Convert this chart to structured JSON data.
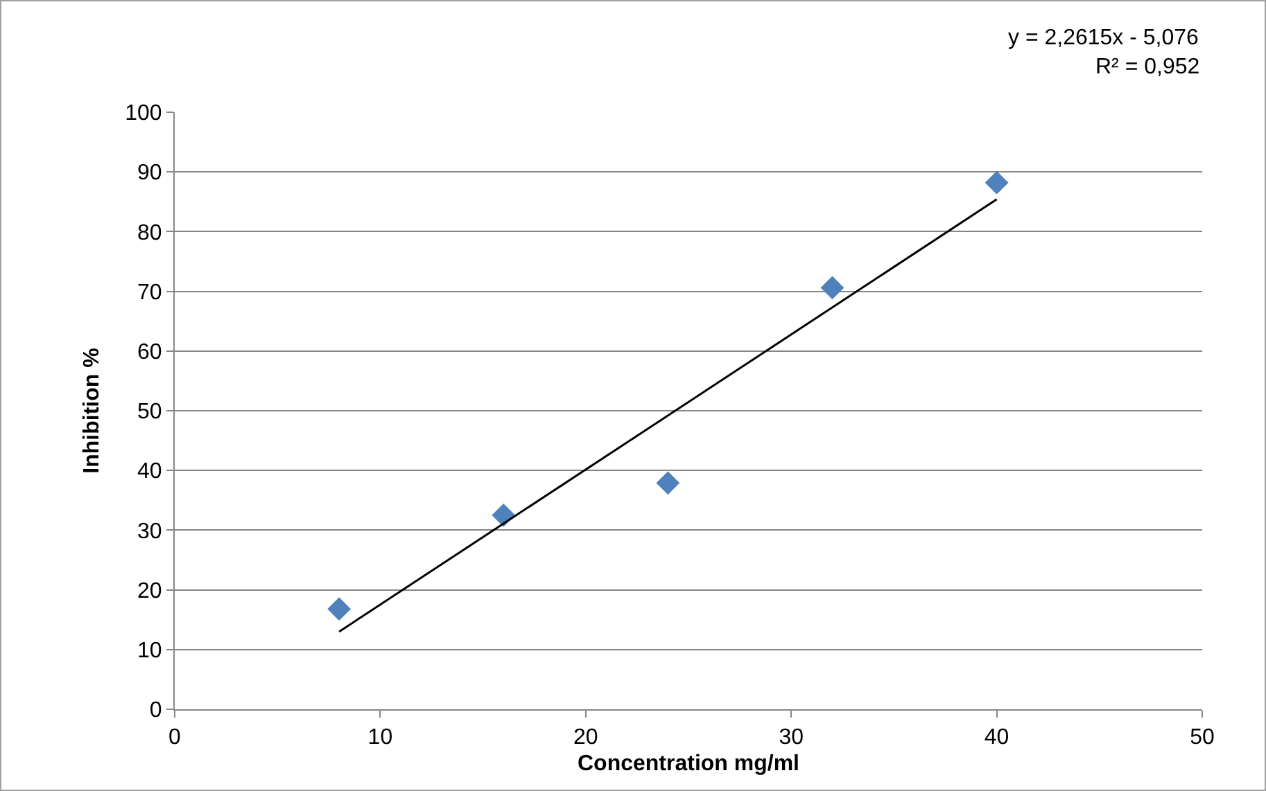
{
  "chart_data": {
    "type": "scatter",
    "xlabel": "Concentration mg/ml",
    "ylabel": "Inhibition %",
    "x": [
      8,
      16,
      24,
      32,
      40
    ],
    "series": [
      {
        "color": "#4f81bd",
        "marker": "diamond",
        "values": [
          16.8,
          32.5,
          37.9,
          70.6,
          88.2
        ]
      },
      {
        "type": "line",
        "color": "#000000",
        "marker": "none",
        "x": [
          8,
          40
        ],
        "values": [
          13.0,
          85.4
        ]
      }
    ],
    "xlim": [
      0,
      50
    ],
    "xticks": [
      0,
      10,
      20,
      30,
      40,
      50
    ],
    "ylim": [
      0,
      100
    ],
    "yticks": [
      0,
      10,
      20,
      30,
      40,
      50,
      60,
      70,
      80,
      90,
      100
    ],
    "grid": "y",
    "annotations": [
      "y = 2,2615x - 5,076",
      "R² = 0,952"
    ]
  }
}
